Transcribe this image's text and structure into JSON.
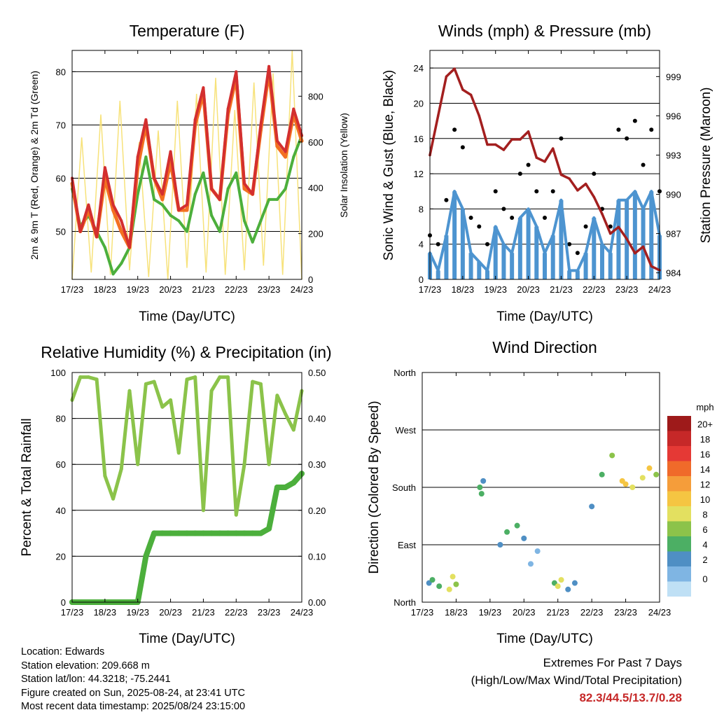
{
  "charts": {
    "temp": {
      "title": "Temperature (F)",
      "xlabel": "Time (Day/UTC)",
      "ylabel_left": "2m & 9m T (Red, Orange) & 2m Td (Green)",
      "ylabel_right": "Solar Insolation (Yellow)",
      "xticks": [
        "17/23",
        "18/23",
        "19/23",
        "20/23",
        "21/23",
        "22/23",
        "23/23",
        "24/23"
      ],
      "yticks_left": [
        "50",
        "60",
        "70",
        "80"
      ],
      "yticks_right": [
        "0",
        "200",
        "400",
        "600",
        "800"
      ]
    },
    "wind": {
      "title": "Winds (mph) & Pressure (mb)",
      "xlabel": "Time (Day/UTC)",
      "ylabel_left": "Sonic Wind & Gust (Blue, Black)",
      "ylabel_right": "Station Pressure (Maroon)",
      "xticks": [
        "17/23",
        "18/23",
        "19/23",
        "20/23",
        "21/23",
        "22/23",
        "23/23",
        "24/23"
      ],
      "yticks_left": [
        "0",
        "4",
        "8",
        "12",
        "16",
        "20",
        "24"
      ],
      "yticks_right": [
        "984",
        "987",
        "990",
        "993",
        "996",
        "999"
      ]
    },
    "rh": {
      "title": "Relative Humidity (%) & Precipitation (in)",
      "xlabel": "Time (Day/UTC)",
      "ylabel_left": "Percent & Total Rainfall",
      "xticks": [
        "17/23",
        "18/23",
        "19/23",
        "20/23",
        "21/23",
        "22/23",
        "23/23",
        "24/23"
      ],
      "yticks_left": [
        "0",
        "20",
        "40",
        "60",
        "80",
        "100"
      ],
      "yticks_right": [
        "0.00",
        "0.10",
        "0.20",
        "0.30",
        "0.40",
        "0.50"
      ]
    },
    "dir": {
      "title": "Wind Direction",
      "xlabel": "Time (Day/UTC)",
      "ylabel_left": "Direction (Colored By Speed)",
      "xticks": [
        "17/23",
        "18/23",
        "19/23",
        "20/23",
        "21/23",
        "22/23",
        "23/23",
        "24/23"
      ],
      "yticks_left": [
        "North",
        "East",
        "South",
        "West",
        "North"
      ],
      "legend_title": "mph",
      "legend_labels": [
        "20+",
        "18",
        "16",
        "14",
        "12",
        "10",
        "8",
        "6",
        "4",
        "2",
        "0"
      ],
      "legend_colors": [
        "#9e1a1a",
        "#c62828",
        "#e53935",
        "#f06a2a",
        "#f59d3a",
        "#f5c542",
        "#e3e060",
        "#8cc34a",
        "#4caf64",
        "#4f8fc4",
        "#7fb5e3",
        "#bfe0f5"
      ]
    }
  },
  "chart_data": [
    {
      "type": "line",
      "title": "Temperature (F)",
      "xlabel": "Time (Day/UTC)",
      "ylabel": "2m & 9m T (Red, Orange) & 2m Td (Green)",
      "ylabel_right": "Solar Insolation (Yellow)",
      "categories": [
        "17/23",
        "18/23",
        "19/23",
        "20/23",
        "21/23",
        "22/23",
        "23/23",
        "24/23"
      ],
      "ylim": [
        41,
        84
      ],
      "ylim_right": [
        0,
        1000
      ],
      "x": [
        0,
        0.25,
        0.5,
        0.75,
        1,
        1.25,
        1.5,
        1.75,
        2,
        2.25,
        2.5,
        2.75,
        3,
        3.25,
        3.5,
        3.75,
        4,
        4.25,
        4.5,
        4.75,
        5,
        5.25,
        5.5,
        5.75,
        6,
        6.25,
        6.5,
        6.75,
        7
      ],
      "series": [
        {
          "color": "#d32f2f",
          "values": [
            60,
            50,
            55,
            49,
            62,
            55,
            52,
            47,
            64,
            71,
            60,
            57,
            65,
            54,
            55,
            71,
            77,
            58,
            56,
            73,
            80,
            59,
            57,
            70,
            81,
            67,
            65,
            73,
            68
          ]
        },
        {
          "color": "#f37021",
          "values": [
            59,
            50,
            54,
            49,
            60,
            54,
            50,
            47,
            62,
            70,
            60,
            56,
            63,
            54,
            54,
            70,
            76,
            58,
            56,
            72,
            79,
            58,
            57,
            69,
            80,
            66,
            64,
            72,
            67
          ]
        },
        {
          "color": "#4caf3c",
          "values": [
            58,
            51,
            53,
            50,
            47,
            42,
            44,
            47,
            57,
            64,
            56,
            55,
            53,
            52,
            50,
            57,
            61,
            53,
            50,
            58,
            61,
            52,
            48,
            52,
            56,
            56,
            58,
            64,
            68
          ]
        }
      ],
      "insolation": [
        0,
        620,
        30,
        720,
        20,
        780,
        40,
        600,
        10,
        650,
        0,
        780,
        50,
        810,
        30,
        880,
        20,
        740,
        40,
        860,
        60,
        900,
        20,
        1000,
        0
      ]
    },
    {
      "type": "line",
      "title": "Winds (mph) & Pressure (mb)",
      "xlabel": "Time (Day/UTC)",
      "ylabel": "Sonic Wind & Gust (Blue, Black)",
      "ylabel_right": "Station Pressure (Maroon)",
      "categories": [
        "17/23",
        "18/23",
        "19/23",
        "20/23",
        "21/23",
        "22/23",
        "23/23",
        "24/23"
      ],
      "ylim": [
        0,
        26
      ],
      "ylim_right": [
        983.5,
        1001
      ],
      "x": [
        0,
        0.25,
        0.5,
        0.75,
        1,
        1.25,
        1.5,
        1.75,
        2,
        2.25,
        2.5,
        2.75,
        3,
        3.25,
        3.5,
        3.75,
        4,
        4.25,
        4.5,
        4.75,
        5,
        5.25,
        5.5,
        5.75,
        6,
        6.25,
        6.5,
        6.75,
        7
      ],
      "series": [
        {
          "color": "#000000",
          "values": [
            5,
            4,
            9,
            17,
            15,
            7,
            6,
            4,
            10,
            8,
            7,
            12,
            13,
            10,
            7,
            10,
            16,
            4,
            3,
            6,
            12,
            8,
            6,
            17,
            16,
            18,
            13,
            17,
            10
          ]
        },
        {
          "color": "#4d94d0",
          "values": [
            3,
            1,
            5,
            10,
            8,
            3,
            2,
            1,
            6,
            4,
            3,
            7,
            8,
            6,
            3,
            5,
            9,
            1,
            1,
            3,
            7,
            4,
            3,
            9,
            9,
            10,
            8,
            10,
            5
          ]
        },
        {
          "color": "#a31f1f",
          "values": [
            993,
            996,
            999,
            999.6,
            998,
            997.6,
            996,
            993.8,
            993.8,
            993.4,
            994.2,
            994.2,
            994.8,
            992.8,
            992.5,
            993.5,
            991.5,
            991.2,
            990.3,
            990.8,
            989.8,
            988.5,
            987,
            987.5,
            986.6,
            985.5,
            986,
            984.5,
            984.2
          ]
        }
      ]
    },
    {
      "type": "line",
      "title": "Relative Humidity (%) & Precipitation (in)",
      "xlabel": "Time (Day/UTC)",
      "ylabel": "Percent & Total Rainfall",
      "categories": [
        "17/23",
        "18/23",
        "19/23",
        "20/23",
        "21/23",
        "22/23",
        "23/23",
        "24/23"
      ],
      "ylim": [
        0,
        100
      ],
      "ylim_right": [
        0,
        0.5
      ],
      "x": [
        0,
        0.25,
        0.5,
        0.75,
        1,
        1.25,
        1.5,
        1.75,
        2,
        2.25,
        2.5,
        2.75,
        3,
        3.25,
        3.5,
        3.75,
        4,
        4.25,
        4.5,
        4.75,
        5,
        5.25,
        5.5,
        5.75,
        6,
        6.25,
        6.5,
        6.75,
        7
      ],
      "series": [
        {
          "color": "#8bc34a",
          "values": [
            88,
            98,
            98,
            97,
            55,
            45,
            58,
            92,
            60,
            95,
            96,
            85,
            88,
            65,
            97,
            98,
            40,
            92,
            98,
            98,
            38,
            60,
            96,
            95,
            60,
            90,
            82,
            75,
            92
          ]
        },
        {
          "color": "#4caf3c",
          "values": [
            0,
            0,
            0,
            0,
            0,
            0,
            0,
            0,
            0,
            0.1,
            0.15,
            0.15,
            0.15,
            0.15,
            0.15,
            0.15,
            0.15,
            0.15,
            0.15,
            0.15,
            0.15,
            0.15,
            0.15,
            0.15,
            0.16,
            0.25,
            0.25,
            0.26,
            0.28
          ]
        }
      ]
    },
    {
      "type": "scatter",
      "title": "Wind Direction",
      "xlabel": "Time (Day/UTC)",
      "ylabel": "Direction (Colored By Speed)",
      "categories": [
        "17/23",
        "18/23",
        "19/23",
        "20/23",
        "21/23",
        "22/23",
        "23/23",
        "24/23"
      ],
      "yticks": [
        "North",
        "East",
        "South",
        "West",
        "North"
      ],
      "ylim": [
        0,
        360
      ],
      "legend_title": "mph",
      "x": [
        0.2,
        0.3,
        0.5,
        0.8,
        0.9,
        1.0,
        1.7,
        1.75,
        1.8,
        2.3,
        2.5,
        2.8,
        3.0,
        3.2,
        3.4,
        3.9,
        4.0,
        4.1,
        4.3,
        4.5,
        5.0,
        5.3,
        5.6,
        5.9,
        6.0,
        6.2,
        6.5,
        6.7,
        6.9
      ],
      "y": [
        30,
        35,
        25,
        20,
        40,
        28,
        180,
        170,
        190,
        90,
        110,
        120,
        100,
        60,
        80,
        30,
        25,
        35,
        20,
        30,
        150,
        200,
        230,
        190,
        185,
        180,
        195,
        210,
        200
      ],
      "speed": [
        4,
        5,
        6,
        9,
        10,
        8,
        5,
        6,
        4,
        3,
        5,
        6,
        4,
        2,
        2,
        5,
        9,
        10,
        4,
        3,
        4,
        6,
        8,
        11,
        12,
        10,
        9,
        12,
        7
      ]
    }
  ],
  "info": {
    "location": "Location: Edwards",
    "elevation": "Station elevation: 209.668 m",
    "latlon": "Station lat/lon: 44.3218; -75.2441",
    "created": "Figure created on Sun, 2025-08-24, at 23:41 UTC",
    "recent": "Most recent data timestamp: 2025/08/24 23:15:00"
  },
  "extremes": {
    "title": "Extremes For Past 7 Days",
    "subtitle": "(High/Low/Max Wind/Total Precipitation)",
    "values": "82.3/44.5/13.7/0.28"
  }
}
